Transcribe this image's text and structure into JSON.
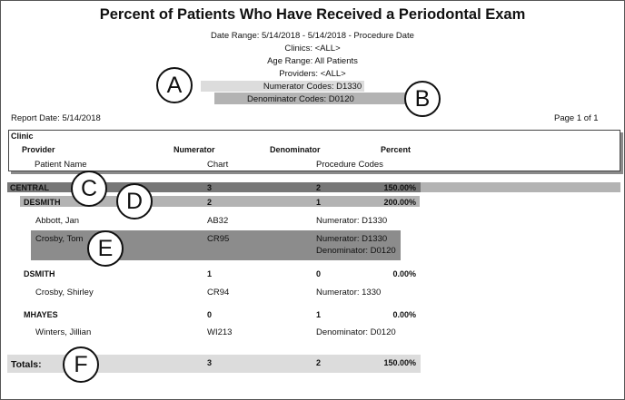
{
  "report": {
    "title": "Percent of Patients Who Have Received a Periodontal Exam",
    "date_range": "Date Range: 5/14/2018 - 5/14/2018 - Procedure Date",
    "clinics": "Clinics: <ALL>",
    "age_range": "Age Range: All Patients",
    "providers": "Providers: <ALL>",
    "numerator_codes": "Numerator Codes: D1330",
    "denominator_codes": "Denominator Codes: D0120",
    "report_date": "Report Date: 5/14/2018",
    "page": "Page 1 of 1"
  },
  "headers": {
    "clinic": "Clinic",
    "provider": "Provider",
    "numerator": "Numerator",
    "denominator": "Denominator",
    "percent": "Percent",
    "patient_name": "Patient Name",
    "chart": "Chart",
    "procedure_codes": "Procedure Codes"
  },
  "clinic_row": {
    "name": "CENTRAL",
    "numerator": "3",
    "denominator": "2",
    "percent": "150.00%"
  },
  "providers": [
    {
      "name": "DESMITH",
      "numerator": "2",
      "denominator": "1",
      "percent": "200.00%",
      "patients": [
        {
          "name": "Abbott, Jan",
          "chart": "AB32",
          "codes": [
            "Numerator: D1330"
          ]
        },
        {
          "name": "Crosby, Tom",
          "chart": "CR95",
          "codes": [
            "Numerator: D1330",
            "Denominator: D0120"
          ]
        }
      ]
    },
    {
      "name": "DSMITH",
      "numerator": "1",
      "denominator": "0",
      "percent": "0.00%",
      "patients": [
        {
          "name": "Crosby, Shirley",
          "chart": "CR94",
          "codes": [
            "Numerator: 1330"
          ]
        }
      ]
    },
    {
      "name": "MHAYES",
      "numerator": "0",
      "denominator": "1",
      "percent": "0.00%",
      "patients": [
        {
          "name": "Winters, Jillian",
          "chart": "WI213",
          "codes": [
            "Denominator: D0120"
          ]
        }
      ]
    }
  ],
  "totals": {
    "label": "Totals:",
    "numerator": "3",
    "denominator": "2",
    "percent": "150.00%"
  },
  "callouts": [
    "A",
    "B",
    "C",
    "D",
    "E",
    "F"
  ],
  "colors": {
    "band_light": "#dcdcdc",
    "band_mid": "#b3b3b3",
    "band_dark": "#8c8c8c",
    "band_darker": "#777777"
  }
}
